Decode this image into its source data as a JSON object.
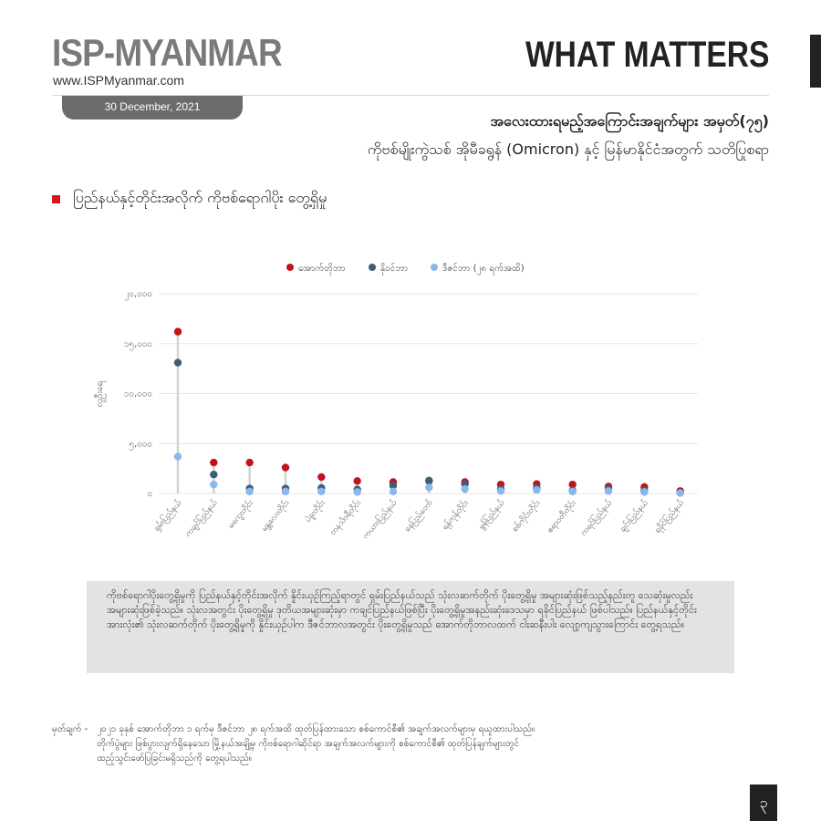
{
  "header": {
    "logo": "ISP-MYANMAR",
    "website": "www.ISPMyanmar.com",
    "date": "30 December, 2021",
    "right_title": "WHAT MATTERS"
  },
  "title": {
    "line1": "အလေးထားရမည့်အကြောင်းအချက်များ အမှတ်(၇၅)",
    "line2": "ကိုဗစ်မျိုးကွဲသစ် အိုမီခရွန် (Omicron) နှင့် မြန်မာနိုင်ငံအတွက် သတိပြုစရာ"
  },
  "section_title": "ပြည်နယ်နှင့်တိုင်းအလိုက် ကိုဗစ်ရောဂါပိုး တွေ့ရှိမှု",
  "chart_data": {
    "type": "scatter",
    "ylabel": "လူဦးရေ",
    "ylim": [
      0,
      20000
    ],
    "yticks": [
      0,
      5000,
      10000,
      15000,
      20000
    ],
    "ytick_labels": [
      "၀",
      "၅,၀၀၀",
      "၁၀,၀၀၀",
      "၁၅,၀၀၀",
      "၂၀,၀၀၀"
    ],
    "grid": true,
    "legend_position": "top-center",
    "categories": [
      "ရှမ်းပြည်နယ်",
      "ကချင်ပြည်နယ်",
      "မကွေးတိုင်း",
      "မန္တလေးတိုင်း",
      "ပဲခူးတိုင်း",
      "တနင်္သာရီတိုင်း",
      "ကယားပြည်နယ်",
      "နေပြည်တော်",
      "ရန်ကုန်တိုင်း",
      "မွန်ပြည်နယ်",
      "စစ်ကိုင်းတိုင်း",
      "ဧရာဝတီတိုင်း",
      "ကရင်ပြည်နယ်",
      "ချင်းပြည်နယ်",
      "ရခိုင်ပြည်နယ်"
    ],
    "series": [
      {
        "name": "အောက်တိုဘာ",
        "color": "#c0141c",
        "values": [
          16200,
          3100,
          3100,
          2600,
          1650,
          1250,
          1150,
          1250,
          1150,
          900,
          950,
          900,
          700,
          650,
          250
        ]
      },
      {
        "name": "နိုဝင်ဘာ",
        "color": "#3d5f73",
        "values": [
          13100,
          1900,
          500,
          500,
          550,
          400,
          800,
          1300,
          950,
          450,
          550,
          300,
          500,
          300,
          100
        ]
      },
      {
        "name": "ဒီဇင်ဘာ (၂၈ ရက်အထိ)",
        "color": "#8ab7ee",
        "values": [
          3700,
          900,
          200,
          200,
          200,
          150,
          200,
          600,
          450,
          250,
          350,
          200,
          250,
          150,
          50
        ]
      }
    ]
  },
  "summary": "ကိုဗစ်ရောဂါပိုးတွေ့ရှိမှုကို ပြည်နယ်နှင့်တိုင်းအလိုက် နှိုင်းယှဉ်ကြည့်ရာတွင် ရှမ်းပြည်နယ်သည် သုံးလဆက်တိုက် ပိုးတွေ့ရှိမှု အများဆုံးဖြစ်သည့်နည်းတူ သေဆုံးမှုလည်း အများဆုံးဖြစ်ခဲ့သည်။ သုံးလအတွင်း ပိုးတွေ့ရှိမှု ဒုတိယအများဆုံးမှာ ကချင်ပြည်နယ်ဖြစ်ပြီး ပိုးတွေ့ရှိမှုအနည်းဆုံးဒေသမှာ ရခိုင်ပြည်နယ် ဖြစ်ပါသည်။ ပြည်နယ်နှင့်တိုင်းအားလုံး၏ သုံးလဆက်တိုက် ပိုးတွေ့ရှိမှုကို နှိုင်းယှဉ်ပါက ဒီဇင်ဘာလအတွင်း ပိုးတွေ့ရှိမှုသည် အောက်တိုဘာလထက် ငါးဆနီးပါး လျော့ကျသွားကြောင်း တွေ့ရသည်။",
  "note": {
    "label": "မှတ်ချက် -",
    "line1": "၂၀၂၁ ခုနှစ် အောက်တိုဘာ ၁ ရက်မှ ဒီဇင်ဘာ ၂၈ ရက်အထိ ထုတ်ပြန်ထားသော စစ်ကောင်စီ၏ အချက်အလက်များမှ ရယူထားပါသည်။",
    "line2": "တိုက်ပွဲများ ဖြစ်ပွားလျက်ရှိနေသော မြို့နယ်အချို့မှ ကိုဗစ်ရောဂါဆိုင်ရာ အချက်အလက်များကို စစ်ကောင်စီ၏ ထုတ်ပြန်ချက်များတွင်",
    "line3": "ထည့်သွင်းဖော်ပြခြင်းမရှိသည်ကို တွေ့ရပါသည်။"
  },
  "page_number": "၃"
}
